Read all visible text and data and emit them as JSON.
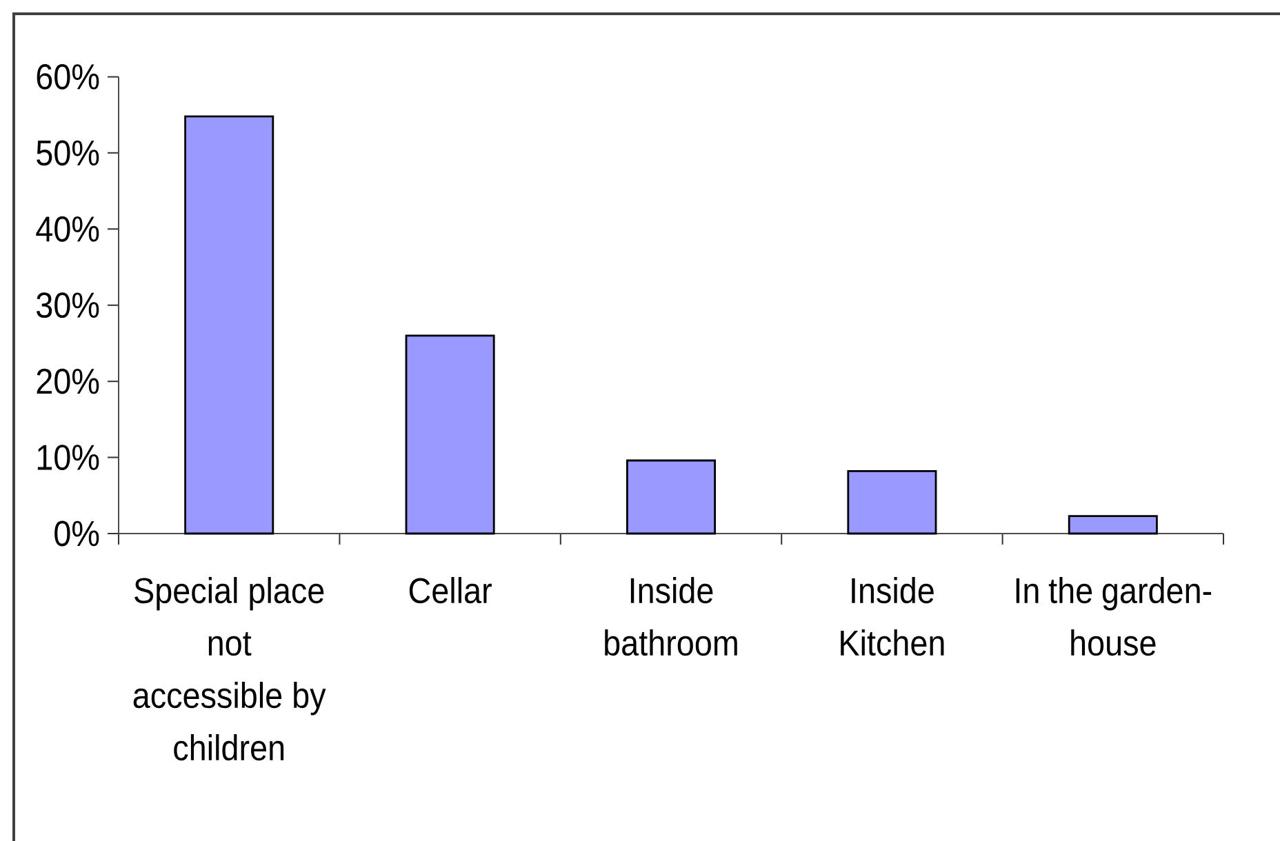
{
  "chart_data": {
    "type": "bar",
    "categories": [
      "Special place not accessible by children",
      "Cellar",
      "Inside bathroom",
      "Inside Kitchen",
      "In the garden-house"
    ],
    "values": [
      54.8,
      26.0,
      9.6,
      8.2,
      2.3
    ],
    "color": "#9999ff",
    "ylim": [
      0,
      60
    ],
    "yticks": [
      {
        "value": 0,
        "label": "0%"
      },
      {
        "value": 10,
        "label": "10%"
      },
      {
        "value": 20,
        "label": "20%"
      },
      {
        "value": 30,
        "label": "30%"
      },
      {
        "value": 40,
        "label": "40%"
      },
      {
        "value": 50,
        "label": "50%"
      },
      {
        "value": 60,
        "label": "60%"
      }
    ]
  }
}
